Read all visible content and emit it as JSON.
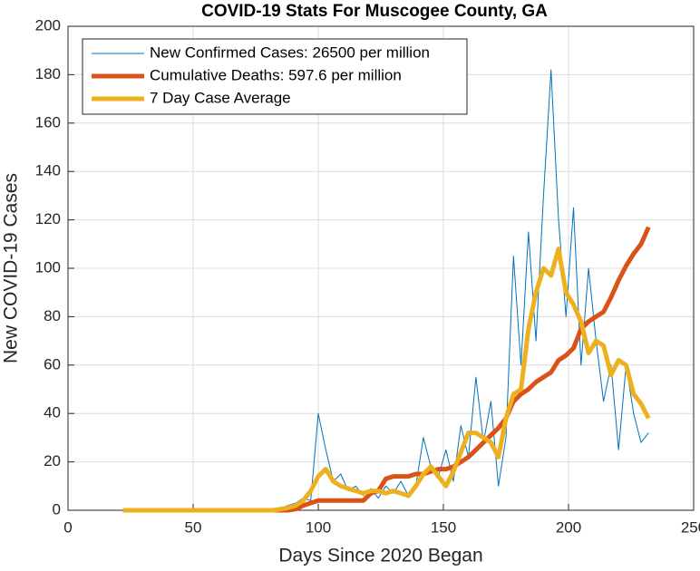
{
  "chart_data": {
    "type": "line",
    "title": "COVID-19 Stats For Muscogee County, GA",
    "x_label": "Days Since 2020 Began",
    "y_label": "New COVID-19 Cases",
    "x": [
      22,
      25,
      28,
      31,
      34,
      37,
      40,
      43,
      46,
      49,
      52,
      55,
      58,
      61,
      64,
      67,
      70,
      73,
      76,
      79,
      82,
      85,
      88,
      91,
      94,
      97,
      100,
      103,
      106,
      109,
      112,
      115,
      118,
      121,
      124,
      127,
      130,
      133,
      136,
      139,
      142,
      145,
      148,
      151,
      154,
      157,
      160,
      163,
      166,
      169,
      172,
      175,
      178,
      181,
      184,
      187,
      190,
      193,
      196,
      199,
      202,
      205,
      208,
      211,
      214,
      217,
      220,
      223,
      226,
      229,
      232
    ],
    "series": [
      {
        "name": "New Confirmed Cases: 26500 per million",
        "color": "#0072bd",
        "width": 1,
        "values": [
          0,
          0,
          0,
          0,
          0,
          0,
          0,
          0,
          0,
          0,
          0,
          0,
          0,
          0,
          0,
          0,
          0,
          0,
          0,
          0,
          0,
          1,
          2,
          3,
          5,
          4,
          40,
          25,
          12,
          15,
          8,
          10,
          6,
          9,
          5,
          10,
          7,
          12,
          6,
          10,
          30,
          18,
          14,
          25,
          12,
          35,
          22,
          55,
          28,
          45,
          10,
          30,
          105,
          60,
          115,
          70,
          130,
          182,
          120,
          80,
          125,
          60,
          100,
          70,
          45,
          60,
          25,
          60,
          40,
          28,
          32
        ]
      },
      {
        "name": "Cumulative Deaths: 597.6 per million",
        "color": "#d95319",
        "width": 5,
        "values": [
          0,
          0,
          0,
          0,
          0,
          0,
          0,
          0,
          0,
          0,
          0,
          0,
          0,
          0,
          0,
          0,
          0,
          0,
          0,
          0,
          0,
          0,
          0,
          0.5,
          2,
          3,
          4,
          4,
          4,
          4,
          4,
          4,
          4,
          7,
          8,
          13,
          14,
          14,
          14,
          15,
          15,
          16,
          17,
          17,
          18,
          20,
          22,
          25,
          28,
          31,
          34,
          38,
          45,
          48,
          50,
          53,
          55,
          57,
          62,
          64,
          67,
          75,
          78,
          80,
          82,
          88,
          95,
          101,
          106,
          110,
          117
        ]
      },
      {
        "name": "7 Day Case Average",
        "color": "#edb120",
        "width": 5,
        "values": [
          0,
          0,
          0,
          0,
          0,
          0,
          0,
          0,
          0,
          0,
          0,
          0,
          0,
          0,
          0,
          0,
          0,
          0,
          0,
          0,
          0,
          0.5,
          1,
          2,
          4,
          8,
          14,
          17,
          12,
          10,
          9,
          8,
          7,
          8,
          8,
          7,
          8,
          7,
          6,
          10,
          15,
          18,
          14,
          10,
          16,
          24,
          32,
          32,
          30,
          28,
          22,
          38,
          48,
          50,
          75,
          90,
          100,
          97,
          108,
          90,
          85,
          78,
          65,
          70,
          68,
          56,
          62,
          60,
          48,
          44,
          38
        ]
      }
    ],
    "xlim": [
      0,
      250
    ],
    "xticks": [
      0,
      50,
      100,
      150,
      200,
      250
    ],
    "ylim": [
      0,
      200
    ],
    "yticks": [
      0,
      20,
      40,
      60,
      80,
      100,
      120,
      140,
      160,
      180,
      200
    ],
    "grid": true,
    "legend": "upper-left"
  }
}
